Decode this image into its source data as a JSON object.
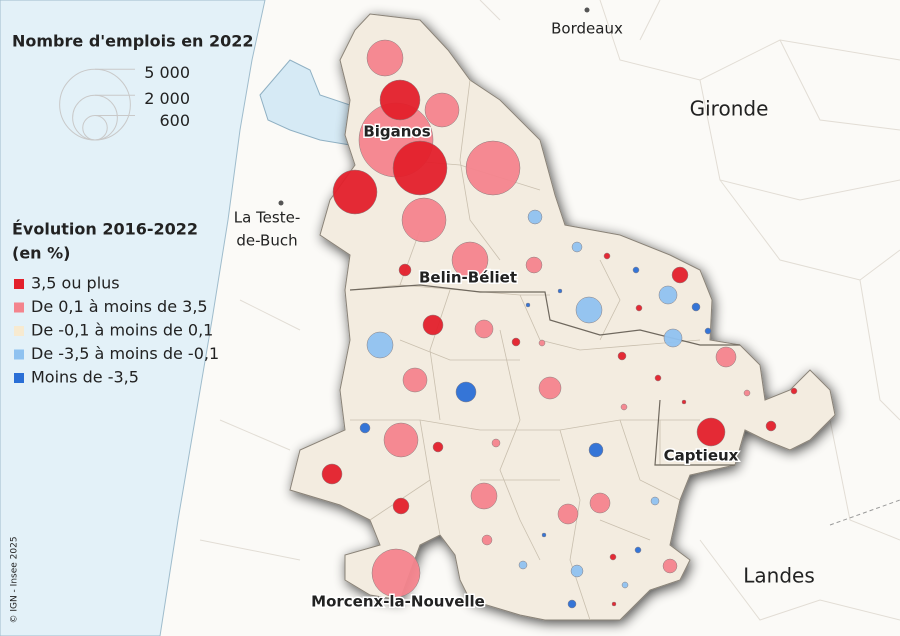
{
  "legend": {
    "size_title": "Nombre d'emplois en 2022",
    "sizes": [
      {
        "value": 5000,
        "label": "5 000"
      },
      {
        "value": 2000,
        "label": "2 000"
      },
      600
    ],
    "color_title": [
      "Évolution 2016-2022",
      "(en %)"
    ],
    "classes": [
      {
        "label": "3,5 ou plus",
        "color": "#e3202b"
      },
      {
        "label": "De 0,1 à moins de 3,5",
        "color": "#f4848d"
      },
      {
        "label": "De -0,1 à moins de 0,1",
        "color": "#f7ead0"
      },
      {
        "label": "De -3,5 à moins de -0,1",
        "color": "#8fc2f0"
      },
      {
        "label": "Moins de -3,5",
        "color": "#2a6fd6"
      }
    ]
  },
  "places": [
    {
      "label": "Bordeaux"
    },
    {
      "label": "Gironde"
    },
    {
      "label": "La Teste-"
    },
    {
      "label": "de-Buch"
    },
    {
      "label": "Biganos"
    },
    {
      "label": "Belin-Béliet"
    },
    {
      "label": "Captieux"
    },
    {
      "label": "Morcenx-la-Nouvelle"
    },
    {
      "label": "Landes"
    }
  ],
  "copyright": "© IGN - Insee 2025",
  "bubbles": [
    {
      "jobs": 1296,
      "class": 1
    },
    {
      "jobs": 1600,
      "class": 0
    },
    {
      "jobs": 1156,
      "class": 1
    },
    {
      "jobs": 5476,
      "class": 1
    },
    {
      "jobs": 2916,
      "class": 0
    },
    {
      "jobs": 2916,
      "class": 1
    },
    {
      "jobs": 1936,
      "class": 0
    },
    {
      "jobs": 1936,
      "class": 1
    },
    {
      "jobs": 1296,
      "class": 1
    },
    {
      "jobs": 144,
      "class": 0
    },
    {
      "jobs": 256,
      "class": 1
    },
    {
      "jobs": 196,
      "class": 3
    },
    {
      "jobs": 100,
      "class": 3
    },
    {
      "jobs": 36,
      "class": 0
    },
    {
      "jobs": 36,
      "class": 4
    },
    {
      "jobs": 256,
      "class": 0
    },
    {
      "jobs": 324,
      "class": 3
    },
    {
      "jobs": 64,
      "class": 4
    },
    {
      "jobs": 36,
      "class": 0
    },
    {
      "jobs": 676,
      "class": 3
    },
    {
      "jobs": 16,
      "class": 4
    },
    {
      "jobs": 16,
      "class": 4
    },
    {
      "jobs": 324,
      "class": 3
    },
    {
      "jobs": 36,
      "class": 4
    },
    {
      "jobs": 400,
      "class": 0
    },
    {
      "jobs": 324,
      "class": 1
    },
    {
      "jobs": 64,
      "class": 0
    },
    {
      "jobs": 36,
      "class": 1
    },
    {
      "jobs": 64,
      "class": 0
    },
    {
      "jobs": 400,
      "class": 1
    },
    {
      "jobs": 676,
      "class": 3
    },
    {
      "jobs": 576,
      "class": 1
    },
    {
      "jobs": 484,
      "class": 1
    },
    {
      "jobs": 36,
      "class": 0
    },
    {
      "jobs": 36,
      "class": 1
    },
    {
      "jobs": 36,
      "class": 0
    },
    {
      "jobs": 400,
      "class": 4
    },
    {
      "jobs": 36,
      "class": 1
    },
    {
      "jobs": 16,
      "class": 0
    },
    {
      "jobs": 784,
      "class": 0
    },
    {
      "jobs": 100,
      "class": 0
    },
    {
      "jobs": 100,
      "class": 4
    },
    {
      "jobs": 1156,
      "class": 1
    },
    {
      "jobs": 100,
      "class": 0
    },
    {
      "jobs": 64,
      "class": 1
    },
    {
      "jobs": 196,
      "class": 4
    },
    {
      "jobs": 400,
      "class": 0
    },
    {
      "jobs": 676,
      "class": 1
    },
    {
      "jobs": 256,
      "class": 0
    },
    {
      "jobs": 400,
      "class": 1
    },
    {
      "jobs": 400,
      "class": 1
    },
    {
      "jobs": 64,
      "class": 3
    },
    {
      "jobs": 100,
      "class": 1
    },
    {
      "jobs": 16,
      "class": 4
    },
    {
      "jobs": 2304,
      "class": 1
    },
    {
      "jobs": 64,
      "class": 3
    },
    {
      "jobs": 144,
      "class": 3
    },
    {
      "jobs": 36,
      "class": 0
    },
    {
      "jobs": 36,
      "class": 4
    },
    {
      "jobs": 196,
      "class": 1
    },
    {
      "jobs": 36,
      "class": 3
    },
    {
      "jobs": 64,
      "class": 4
    },
    {
      "jobs": 16,
      "class": 0
    }
  ]
}
